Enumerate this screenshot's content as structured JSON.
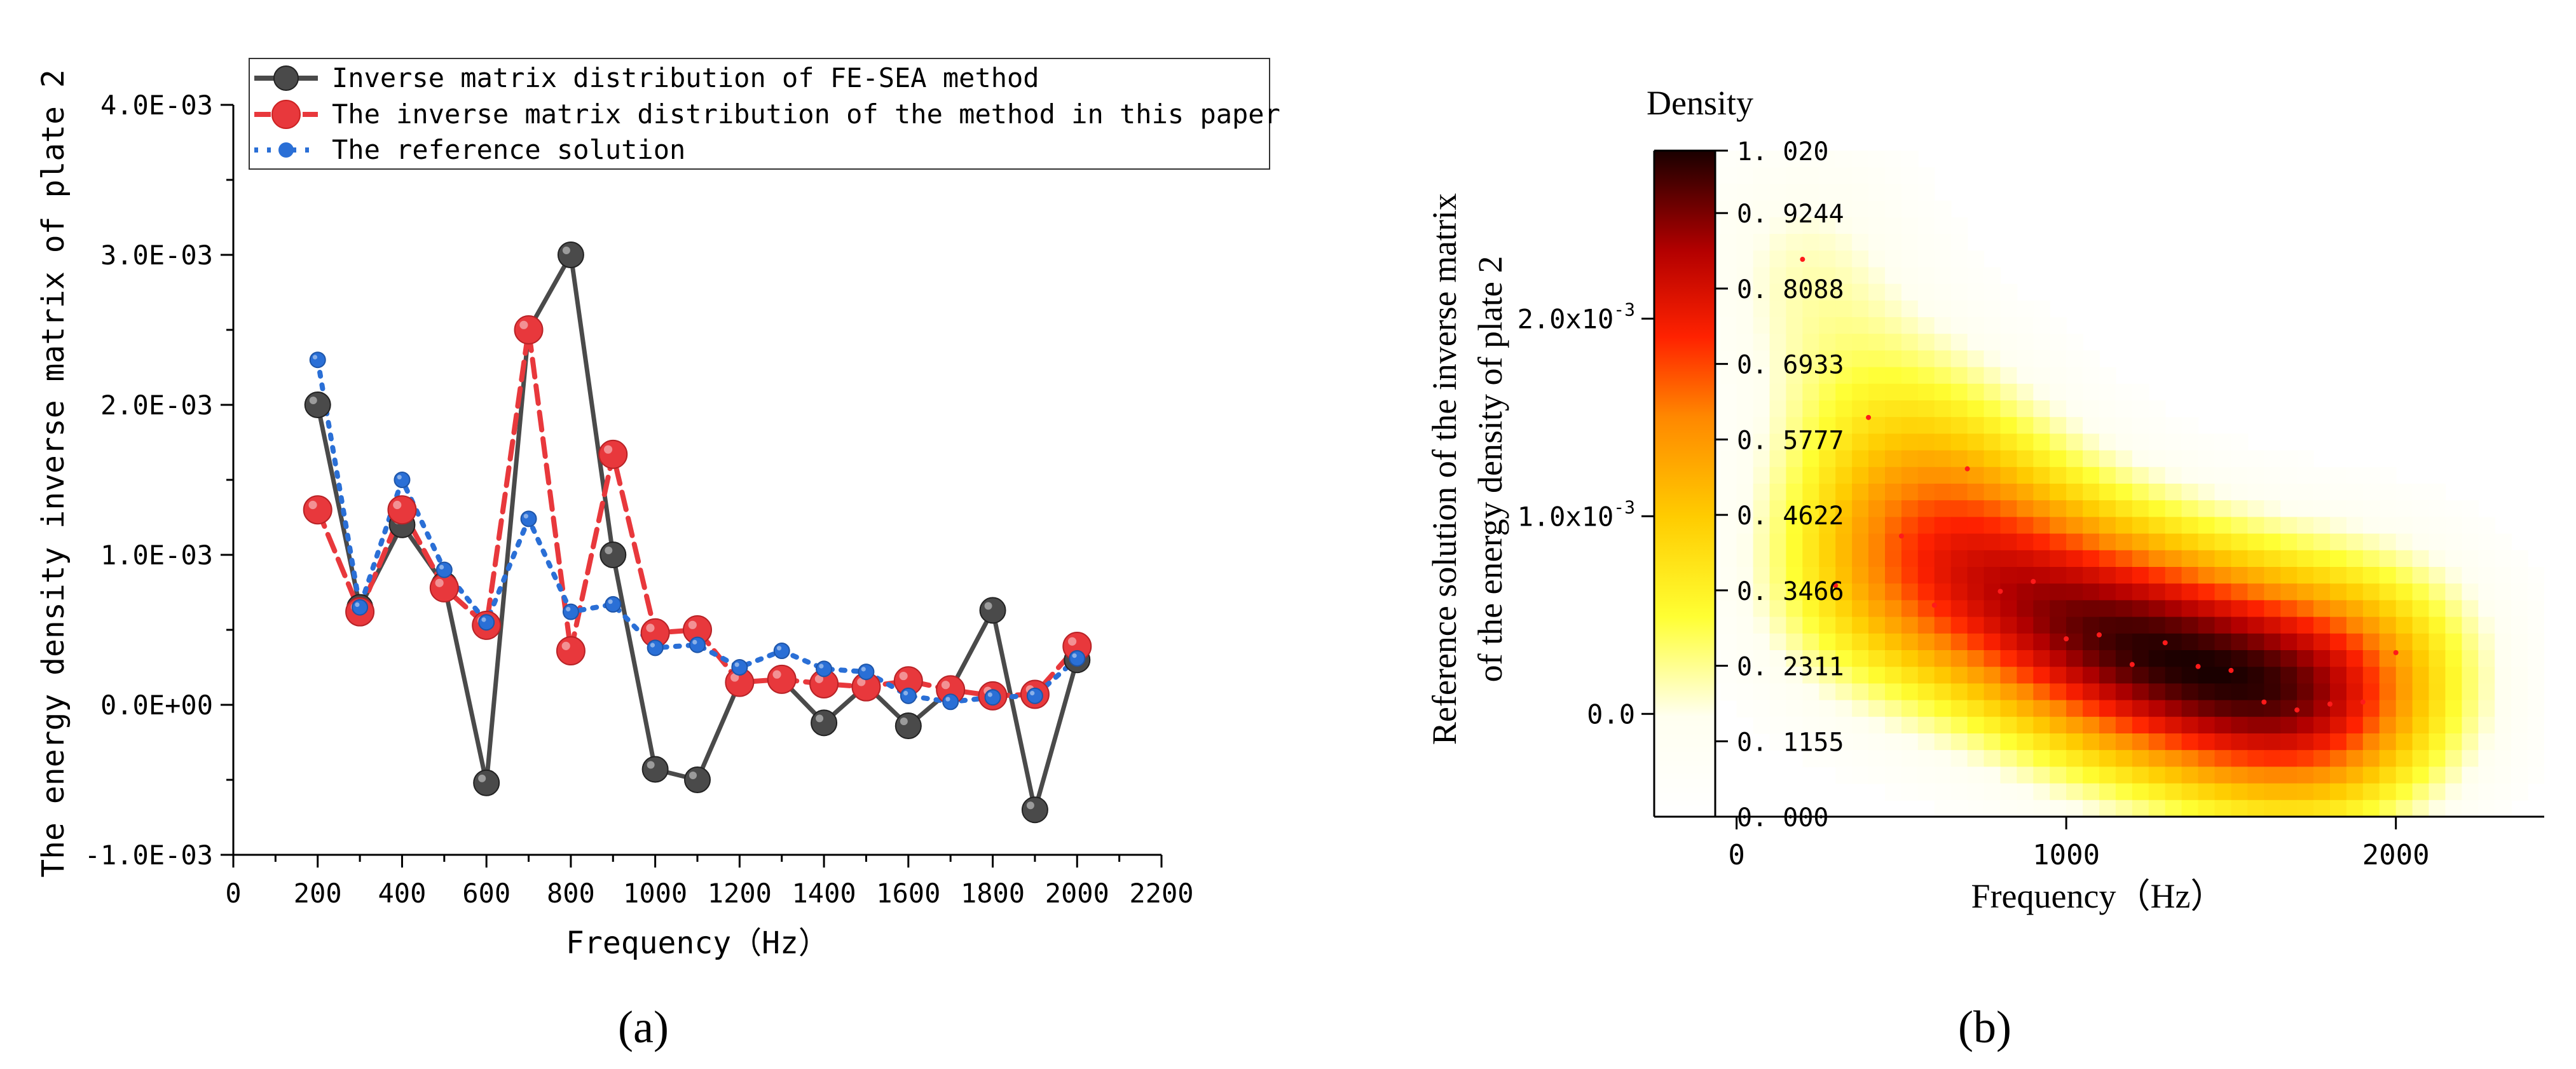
{
  "colors": {
    "fe_sea": "#4a4a4a",
    "method": "#e8383c",
    "reference": "#2a6fd6",
    "axis": "#000000"
  },
  "chart_data": [
    {
      "type": "line",
      "panel_label": "(a)",
      "xlabel": "Frequency（Hz）",
      "ylabel": "The energy density inverse matrix of plate 2",
      "xlim": [
        0,
        2200
      ],
      "ylim": [
        -0.001,
        0.004
      ],
      "x_ticks": [
        0,
        200,
        400,
        600,
        800,
        1000,
        1200,
        1400,
        1600,
        1800,
        2000,
        2200
      ],
      "x_tick_labels": [
        "0",
        "200",
        "400",
        "600",
        "800",
        "1000",
        "1200",
        "1400",
        "1600",
        "1800",
        "2000",
        "2200"
      ],
      "y_ticks": [
        -0.001,
        0,
        0.001,
        0.002,
        0.003,
        0.004
      ],
      "y_tick_labels": [
        "-1.0E-03",
        "0.0E+00",
        "1.0E-03",
        "2.0E-03",
        "3.0E-03",
        "4.0E-03"
      ],
      "legend_position": "top",
      "x": [
        200,
        300,
        400,
        500,
        600,
        700,
        800,
        900,
        1000,
        1100,
        1200,
        1300,
        1400,
        1500,
        1600,
        1700,
        1800,
        1900,
        2000
      ],
      "series": [
        {
          "name": "Inverse matrix distribution of FE-SEA method",
          "style": "solid",
          "values": [
            0.002,
            0.00065,
            0.0012,
            0.0008,
            -0.00052,
            0.0025,
            0.003,
            0.001,
            -0.00043,
            -0.0005,
            0.00015,
            0.00017,
            -0.00012,
            0.00013,
            -0.00014,
            0.0001,
            0.00063,
            -0.0007,
            0.0003
          ]
        },
        {
          "name": "The inverse matrix distribution of the method in this paper",
          "style": "dashed",
          "values": [
            0.0013,
            0.00062,
            0.0013,
            0.00078,
            0.00053,
            0.0025,
            0.00036,
            0.00167,
            0.00048,
            0.0005,
            0.00015,
            0.00017,
            0.00014,
            0.00012,
            0.00016,
            0.0001,
            6e-05,
            7e-05,
            0.00039
          ]
        },
        {
          "name": "The reference solution",
          "style": "dotted",
          "values": [
            0.0023,
            0.00065,
            0.0015,
            0.0009,
            0.00055,
            0.00124,
            0.00062,
            0.00067,
            0.00038,
            0.0004,
            0.00025,
            0.00036,
            0.00024,
            0.00022,
            6e-05,
            2e-05,
            5e-05,
            6e-05,
            0.00031
          ]
        }
      ]
    },
    {
      "type": "heatmap",
      "panel_label": "(b)",
      "title": "Density",
      "xlabel": "Frequency（Hz）",
      "ylabel_line1": "Reference solution of the inverse matrix",
      "ylabel_line2": "of the energy density of plate 2",
      "xlim": [
        -250,
        2450
      ],
      "ylim": [
        -0.00052,
        0.00285
      ],
      "x_ticks": [
        0,
        1000,
        2000
      ],
      "x_tick_labels": [
        "0",
        "1000",
        "2000"
      ],
      "y_ticks": [
        0,
        0.001,
        0.002
      ],
      "y_tick_labels": [
        "0.0",
        "1.0x10",
        "2.0x10"
      ],
      "y_tick_exponents": [
        "",
        "-3",
        "-3"
      ],
      "colorbar_range": [
        0,
        1.02
      ],
      "colorbar_ticks": [
        "0.000",
        "0.1155",
        "0.2311",
        "0.3466",
        "0.4622",
        "0.5777",
        "0.6933",
        "0.8088",
        "0.9244",
        "1.020"
      ],
      "points_x": [
        200,
        300,
        400,
        500,
        600,
        700,
        800,
        900,
        1000,
        1100,
        1200,
        1300,
        1400,
        1500,
        1600,
        1700,
        1800,
        1900,
        2000
      ],
      "points_y": [
        0.0023,
        0.00065,
        0.0015,
        0.0009,
        0.00055,
        0.00124,
        0.00062,
        0.00067,
        0.00038,
        0.0004,
        0.00025,
        0.00036,
        0.00024,
        0.00022,
        6e-05,
        2e-05,
        5e-05,
        6e-05,
        0.00031
      ]
    }
  ]
}
